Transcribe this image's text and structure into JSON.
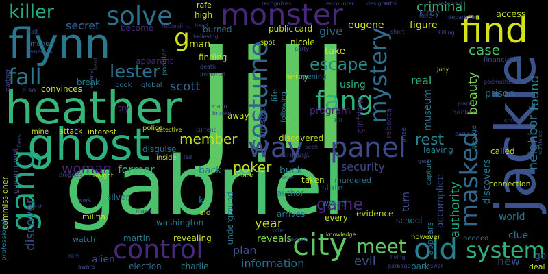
{
  "words": {
    "jill": "jill",
    "gabriel": "gabriel",
    "heather": "heather",
    "flynn": "flynn",
    "jackie": "jackie",
    "ghost": "ghost",
    "find": "find",
    "monster": "monster",
    "killer": "killer",
    "solve": "solve",
    "gang": "gang",
    "city": "city",
    "control": "control",
    "costume": "costume",
    "mystery": "mystery",
    "panel": "panel",
    "way": "way",
    "masked": "masked",
    "old": "old",
    "system": "system",
    "fang": "fang",
    "fall": "fall",
    "lester": "lester",
    "escape": "escape",
    "meet": "meet",
    "criminal": "criminal",
    "case": "case",
    "g": "g",
    "game": "game",
    "poker": "poker",
    "member": "member",
    "woman": "woman",
    "scott": "scott",
    "authority": "authority",
    "neighbor": "neighbor",
    "beauty": "beauty",
    "found": "found",
    "figure": "figure",
    "eugene": "eugene",
    "take": "take",
    "give": "give",
    "secret": "secret",
    "discover": "discover",
    "former": "former",
    "security": "security",
    "rest": "rest",
    "year": "year",
    "evil": "evil",
    "information": "information",
    "reveals": "reveals",
    "plan": "plan",
    "alien": "alien",
    "election": "election",
    "charlie": "charlie",
    "martin": "martin",
    "revealing": "revealing",
    "washington": "washington",
    "real": "real",
    "museum": "museum",
    "discovers": "discovers",
    "accomplice": "accomplice",
    "appears": "appears",
    "prison": "prison",
    "access": "access",
    "kirby": "kirby",
    "card": "card",
    "high": "high",
    "rafe": "rafe",
    "burned": "burned",
    "public": "public",
    "man": "man",
    "finding": "finding",
    "using": "using",
    "program": "program",
    "life": "life",
    "henry": "henry",
    "convinces": "convinces",
    "attack": "attack",
    "interest": "interest",
    "disguise": "disguise",
    "back": "back",
    "buck": "buck",
    "taken": "taken",
    "murdered": "murdered",
    "discovered": "discovered",
    "turn": "turn",
    "new": "new",
    "clue": "clue",
    "world": "world",
    "connection": "connection",
    "go": "go",
    "deal": "deal",
    "watch": "watch",
    "militia": "militia",
    "k": "k",
    "sid": "sid",
    "underground": "underground",
    "commissioner": "commissioner",
    "government": "government",
    "professional": "professional",
    "nicole": "nicole",
    "away": "away",
    "called": "called",
    "leaving": "leaving",
    "capture": "capture",
    "george": "george",
    "prize": "prize",
    "arrested": "arrested",
    "girlfriend": "girlfriend",
    "rebecca": "rebecca",
    "following": "following",
    "opening": "opening",
    "state": "state",
    "author": "author",
    "arrives": "arrives",
    "would": "would",
    "evidence": "evidence",
    "every": "every",
    "school": "school",
    "however": "however",
    "needed": "needed",
    "knowledge": "knowledge",
    "sexual": "sexual",
    "offer": "offer",
    "answer": "answer",
    "park": "park",
    "living": "living",
    "garbage": "garbage",
    "become": "become",
    "recording": "recording",
    "popular": "popular",
    "apparent": "apparent",
    "money": "money",
    "emerges": "emerges",
    "halt": "halt",
    "partner": "partner",
    "also": "also",
    "break": "break",
    "book": "book",
    "global": "global",
    "try": "try",
    "police": "police",
    "detective": "detective",
    "current": "current",
    "mine": "mine",
    "inside": "inside",
    "brought": "brought",
    "silver": "silver",
    "past": "past",
    "work": "work",
    "mean": "mean",
    "progress": "progress",
    "ram": "ram",
    "aware": "aware",
    "note": "note",
    "received": "received",
    "encounter": "encounter",
    "recognizes": "recognizes",
    "designed": "designed",
    "rank": "rank",
    "department": "department",
    "short": "short",
    "killing": "killing",
    "head": "head",
    "believing": "believing",
    "spot": "spot",
    "party": "party",
    "immortal": "immortal",
    "death": "death",
    "claim": "claim",
    "brooke": "brooke",
    "kill": "kill",
    "godmother": "godmother",
    "financial": "financial",
    "judy": "judy",
    "place": "place",
    "crime": "crime",
    "resistance": "resistance",
    "earlier": "earlier",
    "hacker": "hacker",
    "black": "black",
    "save": "save",
    "along": "along",
    "seen": "seen",
    "confront": "confront",
    "led": "led",
    "several": "several",
    "herd": "herd",
    "flees": "flees",
    "gets": "gets"
  }
}
